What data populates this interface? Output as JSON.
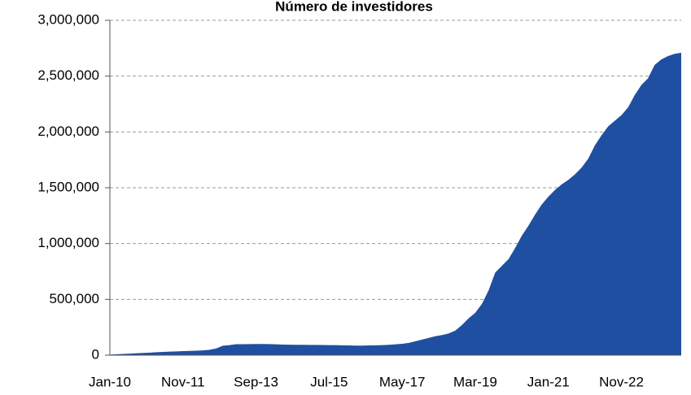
{
  "chart_data": {
    "type": "area",
    "title": "Número de investidores",
    "categories": [
      "Jan-10",
      null,
      null,
      null,
      null,
      null,
      null,
      null,
      null,
      null,
      null,
      "Nov-11",
      null,
      null,
      null,
      null,
      null,
      null,
      null,
      null,
      null,
      null,
      "Sep-13",
      null,
      null,
      null,
      null,
      null,
      null,
      null,
      null,
      null,
      null,
      "Jul-15",
      null,
      null,
      null,
      null,
      null,
      null,
      null,
      null,
      null,
      null,
      "May-17",
      null,
      null,
      null,
      null,
      null,
      null,
      null,
      null,
      null,
      null,
      "Mar-19",
      null,
      null,
      null,
      null,
      null,
      null,
      null,
      null,
      null,
      null,
      "Jan-21",
      null,
      null,
      null,
      null,
      null,
      null,
      null,
      null,
      null,
      null,
      "Nov-22",
      null,
      null,
      null,
      null,
      null,
      null,
      null,
      null,
      null
    ],
    "values": [
      5000,
      8000,
      11000,
      14000,
      17000,
      20000,
      23000,
      26000,
      29000,
      32000,
      34000,
      36000,
      38000,
      40000,
      43000,
      48000,
      60000,
      85000,
      90000,
      98000,
      98000,
      99000,
      100000,
      100000,
      99000,
      97000,
      95000,
      94000,
      93000,
      93000,
      92000,
      92000,
      91000,
      90000,
      90000,
      88000,
      87000,
      86000,
      86000,
      87000,
      88000,
      90000,
      93000,
      97000,
      102000,
      110000,
      125000,
      140000,
      155000,
      170000,
      180000,
      195000,
      220000,
      270000,
      330000,
      380000,
      460000,
      580000,
      740000,
      800000,
      860000,
      960000,
      1070000,
      1160000,
      1260000,
      1350000,
      1420000,
      1480000,
      1530000,
      1570000,
      1620000,
      1680000,
      1760000,
      1880000,
      1970000,
      2050000,
      2100000,
      2150000,
      2220000,
      2330000,
      2420000,
      2480000,
      2600000,
      2650000,
      2680000,
      2700000,
      2710000
    ],
    "color": "#1f4fa0",
    "ylim": [
      0,
      3000000
    ],
    "yticks": [
      0,
      {
        "value": 500000,
        "label": "500,000"
      },
      {
        "value": 1000000,
        "label": "1,000,000"
      },
      {
        "value": 1500000,
        "label": "1,500,000"
      },
      {
        "value": 2000000,
        "label": "2,000,000"
      },
      {
        "value": 2500000,
        "label": "2,500,000"
      },
      {
        "value": 3000000,
        "label": "3,000,000"
      }
    ],
    "grid": true
  }
}
